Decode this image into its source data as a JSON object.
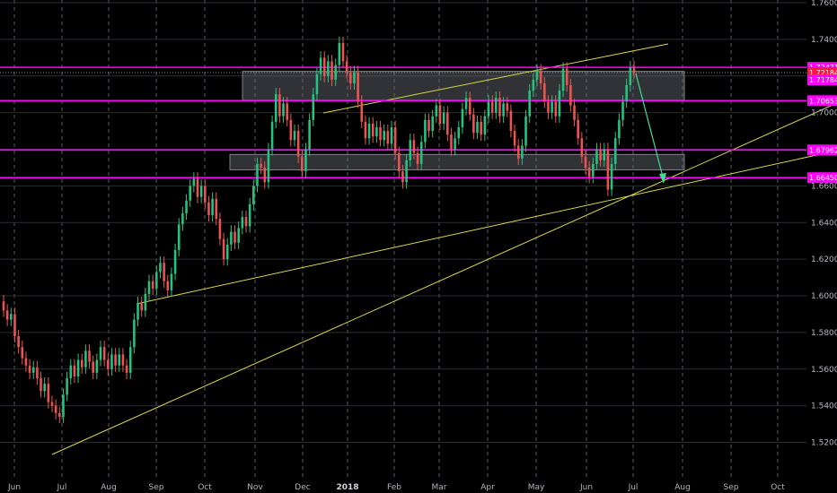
{
  "chart_data": {
    "type": "candlestick",
    "ylim": [
      1.51,
      1.76
    ],
    "y_ticks": [
      "1.52000",
      "1.54000",
      "1.56000",
      "1.58000",
      "1.60000",
      "1.62000",
      "1.64000",
      "1.66000",
      "1.68000",
      "1.70000",
      "1.72000",
      "1.74000",
      "1.76000"
    ],
    "x_ticks": [
      {
        "label": "Jun",
        "bold": false
      },
      {
        "label": "Jul",
        "bold": false
      },
      {
        "label": "Aug",
        "bold": false
      },
      {
        "label": "Sep",
        "bold": false
      },
      {
        "label": "Oct",
        "bold": false
      },
      {
        "label": "Nov",
        "bold": false
      },
      {
        "label": "Dec",
        "bold": false
      },
      {
        "label": "2018",
        "bold": true
      },
      {
        "label": "Feb",
        "bold": false
      },
      {
        "label": "Mar",
        "bold": false
      },
      {
        "label": "Apr",
        "bold": false
      },
      {
        "label": "May",
        "bold": false
      },
      {
        "label": "Jun",
        "bold": false
      },
      {
        "label": "Jul",
        "bold": false
      },
      {
        "label": "Aug",
        "bold": false
      },
      {
        "label": "Sep",
        "bold": false
      },
      {
        "label": "Oct",
        "bold": false
      }
    ],
    "horizontal_levels": [
      {
        "value": 1.72471,
        "label": "1.72471",
        "color": "#ff00ff"
      },
      {
        "value": 1.70653,
        "label": "1.70653",
        "color": "#ff00ff"
      },
      {
        "value": 1.67962,
        "label": "1.67962",
        "color": "#ff00ff"
      },
      {
        "value": 1.6645,
        "label": "1.66450",
        "color": "#ff00ff"
      }
    ],
    "price_labels": [
      {
        "value": 1.72184,
        "label": "1.72184",
        "color": "#ff1744"
      },
      {
        "value": 1.71784,
        "label": "1.71784",
        "color": "#ff00ff"
      }
    ],
    "zones": [
      {
        "y_top": 1.7225,
        "y_bottom": 1.7068
      },
      {
        "y_top": 1.6772,
        "y_bottom": 1.6688
      }
    ],
    "candles_daily": [
      {
        "o": 1.597,
        "c": 1.592
      },
      {
        "o": 1.592,
        "c": 1.587
      },
      {
        "o": 1.587,
        "c": 1.59
      },
      {
        "o": 1.59,
        "c": 1.578
      },
      {
        "o": 1.578,
        "c": 1.572
      },
      {
        "o": 1.572,
        "c": 1.566
      },
      {
        "o": 1.566,
        "c": 1.562
      },
      {
        "o": 1.562,
        "c": 1.558
      },
      {
        "o": 1.558,
        "c": 1.561
      },
      {
        "o": 1.561,
        "c": 1.555
      },
      {
        "o": 1.555,
        "c": 1.548
      },
      {
        "o": 1.548,
        "c": 1.552
      },
      {
        "o": 1.552,
        "c": 1.542
      },
      {
        "o": 1.542,
        "c": 1.54
      },
      {
        "o": 1.54,
        "c": 1.536
      },
      {
        "o": 1.536,
        "c": 1.534
      },
      {
        "o": 1.534,
        "c": 1.546
      },
      {
        "o": 1.546,
        "c": 1.555
      },
      {
        "o": 1.555,
        "c": 1.562
      },
      {
        "o": 1.562,
        "c": 1.556
      },
      {
        "o": 1.556,
        "c": 1.565
      },
      {
        "o": 1.565,
        "c": 1.561
      },
      {
        "o": 1.561,
        "c": 1.57
      },
      {
        "o": 1.57,
        "c": 1.564
      },
      {
        "o": 1.564,
        "c": 1.558
      },
      {
        "o": 1.558,
        "c": 1.565
      },
      {
        "o": 1.565,
        "c": 1.572
      },
      {
        "o": 1.572,
        "c": 1.565
      },
      {
        "o": 1.565,
        "c": 1.56
      },
      {
        "o": 1.56,
        "c": 1.568
      },
      {
        "o": 1.568,
        "c": 1.562
      },
      {
        "o": 1.562,
        "c": 1.568
      },
      {
        "o": 1.568,
        "c": 1.562
      },
      {
        "o": 1.562,
        "c": 1.558
      },
      {
        "o": 1.558,
        "c": 1.572
      },
      {
        "o": 1.572,
        "c": 1.587
      },
      {
        "o": 1.587,
        "c": 1.596
      },
      {
        "o": 1.596,
        "c": 1.592
      },
      {
        "o": 1.592,
        "c": 1.601
      },
      {
        "o": 1.601,
        "c": 1.608
      },
      {
        "o": 1.608,
        "c": 1.604
      },
      {
        "o": 1.604,
        "c": 1.613
      },
      {
        "o": 1.613,
        "c": 1.618
      },
      {
        "o": 1.618,
        "c": 1.608
      },
      {
        "o": 1.608,
        "c": 1.603
      },
      {
        "o": 1.603,
        "c": 1.612
      },
      {
        "o": 1.612,
        "c": 1.625
      },
      {
        "o": 1.625,
        "c": 1.639
      },
      {
        "o": 1.639,
        "c": 1.645
      },
      {
        "o": 1.645,
        "c": 1.652
      },
      {
        "o": 1.652,
        "c": 1.66
      },
      {
        "o": 1.66,
        "c": 1.664
      },
      {
        "o": 1.664,
        "c": 1.654
      },
      {
        "o": 1.654,
        "c": 1.66
      },
      {
        "o": 1.66,
        "c": 1.651
      },
      {
        "o": 1.651,
        "c": 1.644
      },
      {
        "o": 1.644,
        "c": 1.653
      },
      {
        "o": 1.653,
        "c": 1.642
      },
      {
        "o": 1.642,
        "c": 1.631
      },
      {
        "o": 1.631,
        "c": 1.62
      },
      {
        "o": 1.62,
        "c": 1.628
      },
      {
        "o": 1.628,
        "c": 1.635
      },
      {
        "o": 1.635,
        "c": 1.629
      },
      {
        "o": 1.629,
        "c": 1.637
      },
      {
        "o": 1.637,
        "c": 1.643
      },
      {
        "o": 1.643,
        "c": 1.638
      },
      {
        "o": 1.638,
        "c": 1.65
      },
      {
        "o": 1.65,
        "c": 1.66
      },
      {
        "o": 1.66,
        "c": 1.672
      },
      {
        "o": 1.672,
        "c": 1.67
      },
      {
        "o": 1.67,
        "c": 1.662
      },
      {
        "o": 1.662,
        "c": 1.68
      },
      {
        "o": 1.68,
        "c": 1.695
      },
      {
        "o": 1.695,
        "c": 1.71
      },
      {
        "o": 1.71,
        "c": 1.698
      },
      {
        "o": 1.698,
        "c": 1.705
      },
      {
        "o": 1.705,
        "c": 1.696
      },
      {
        "o": 1.696,
        "c": 1.685
      },
      {
        "o": 1.685,
        "c": 1.69
      },
      {
        "o": 1.69,
        "c": 1.676
      },
      {
        "o": 1.676,
        "c": 1.668
      },
      {
        "o": 1.668,
        "c": 1.68
      },
      {
        "o": 1.68,
        "c": 1.696
      },
      {
        "o": 1.696,
        "c": 1.71
      },
      {
        "o": 1.71,
        "c": 1.721
      },
      {
        "o": 1.721,
        "c": 1.73
      },
      {
        "o": 1.73,
        "c": 1.72
      },
      {
        "o": 1.72,
        "c": 1.728
      },
      {
        "o": 1.728,
        "c": 1.718
      },
      {
        "o": 1.718,
        "c": 1.726
      },
      {
        "o": 1.726,
        "c": 1.738
      },
      {
        "o": 1.738,
        "c": 1.728
      },
      {
        "o": 1.728,
        "c": 1.722
      },
      {
        "o": 1.722,
        "c": 1.716
      },
      {
        "o": 1.716,
        "c": 1.722
      },
      {
        "o": 1.722,
        "c": 1.706
      },
      {
        "o": 1.706,
        "c": 1.695
      },
      {
        "o": 1.695,
        "c": 1.686
      },
      {
        "o": 1.686,
        "c": 1.694
      },
      {
        "o": 1.694,
        "c": 1.687
      },
      {
        "o": 1.687,
        "c": 1.692
      },
      {
        "o": 1.692,
        "c": 1.685
      },
      {
        "o": 1.685,
        "c": 1.69
      },
      {
        "o": 1.69,
        "c": 1.683
      },
      {
        "o": 1.683,
        "c": 1.692
      },
      {
        "o": 1.692,
        "c": 1.678
      },
      {
        "o": 1.678,
        "c": 1.668
      },
      {
        "o": 1.668,
        "c": 1.662
      },
      {
        "o": 1.662,
        "c": 1.674
      },
      {
        "o": 1.674,
        "c": 1.685
      },
      {
        "o": 1.685,
        "c": 1.678
      },
      {
        "o": 1.678,
        "c": 1.672
      },
      {
        "o": 1.672,
        "c": 1.684
      },
      {
        "o": 1.684,
        "c": 1.696
      },
      {
        "o": 1.696,
        "c": 1.69
      },
      {
        "o": 1.69,
        "c": 1.698
      },
      {
        "o": 1.698,
        "c": 1.704
      },
      {
        "o": 1.704,
        "c": 1.694
      },
      {
        "o": 1.694,
        "c": 1.7
      },
      {
        "o": 1.7,
        "c": 1.688
      },
      {
        "o": 1.688,
        "c": 1.68
      },
      {
        "o": 1.68,
        "c": 1.686
      },
      {
        "o": 1.686,
        "c": 1.692
      },
      {
        "o": 1.692,
        "c": 1.702
      },
      {
        "o": 1.702,
        "c": 1.708
      },
      {
        "o": 1.708,
        "c": 1.699
      },
      {
        "o": 1.699,
        "c": 1.689
      },
      {
        "o": 1.689,
        "c": 1.695
      },
      {
        "o": 1.695,
        "c": 1.688
      },
      {
        "o": 1.688,
        "c": 1.698
      },
      {
        "o": 1.698,
        "c": 1.706
      },
      {
        "o": 1.706,
        "c": 1.7
      },
      {
        "o": 1.7,
        "c": 1.708
      },
      {
        "o": 1.708,
        "c": 1.698
      },
      {
        "o": 1.698,
        "c": 1.705
      },
      {
        "o": 1.705,
        "c": 1.701
      },
      {
        "o": 1.701,
        "c": 1.69
      },
      {
        "o": 1.69,
        "c": 1.682
      },
      {
        "o": 1.682,
        "c": 1.675
      },
      {
        "o": 1.675,
        "c": 1.682
      },
      {
        "o": 1.682,
        "c": 1.698
      },
      {
        "o": 1.698,
        "c": 1.712
      },
      {
        "o": 1.712,
        "c": 1.718
      },
      {
        "o": 1.718,
        "c": 1.723
      },
      {
        "o": 1.723,
        "c": 1.716
      },
      {
        "o": 1.716,
        "c": 1.706
      },
      {
        "o": 1.706,
        "c": 1.7
      },
      {
        "o": 1.7,
        "c": 1.706
      },
      {
        "o": 1.706,
        "c": 1.698
      },
      {
        "o": 1.698,
        "c": 1.712
      },
      {
        "o": 1.712,
        "c": 1.724
      },
      {
        "o": 1.724,
        "c": 1.715
      },
      {
        "o": 1.715,
        "c": 1.704
      },
      {
        "o": 1.704,
        "c": 1.696
      },
      {
        "o": 1.696,
        "c": 1.686
      },
      {
        "o": 1.686,
        "c": 1.676
      },
      {
        "o": 1.676,
        "c": 1.67
      },
      {
        "o": 1.67,
        "c": 1.665
      },
      {
        "o": 1.665,
        "c": 1.672
      },
      {
        "o": 1.672,
        "c": 1.68
      },
      {
        "o": 1.68,
        "c": 1.674
      },
      {
        "o": 1.674,
        "c": 1.68
      },
      {
        "o": 1.68,
        "c": 1.658
      },
      {
        "o": 1.658,
        "c": 1.672
      },
      {
        "o": 1.672,
        "c": 1.686
      },
      {
        "o": 1.686,
        "c": 1.696
      },
      {
        "o": 1.696,
        "c": 1.706
      },
      {
        "o": 1.706,
        "c": 1.715
      },
      {
        "o": 1.715,
        "c": 1.7247
      },
      {
        "o": 1.7247,
        "c": 1.7218
      }
    ]
  }
}
